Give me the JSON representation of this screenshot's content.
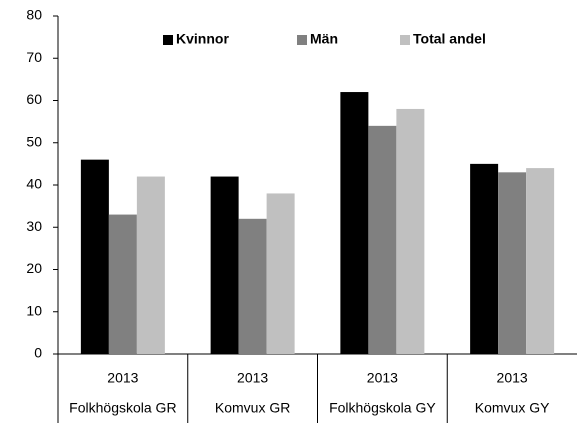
{
  "chart_data": {
    "type": "bar",
    "categories": [
      "Folkhögskola GR",
      "Komvux GR",
      "Folkhögskola GY",
      "Komvux GY"
    ],
    "sub_categories": [
      "2013",
      "2013",
      "2013",
      "2013"
    ],
    "series": [
      {
        "name": "Kvinnor",
        "color": "#000000",
        "values": [
          46,
          42,
          62,
          45
        ]
      },
      {
        "name": "Män",
        "color": "#808080",
        "values": [
          33,
          32,
          54,
          43
        ]
      },
      {
        "name": "Total andel",
        "color": "#c0c0c0",
        "values": [
          42,
          38,
          58,
          44
        ]
      }
    ],
    "ylim": [
      0,
      80
    ],
    "yticks": [
      0,
      10,
      20,
      30,
      40,
      50,
      60,
      70,
      80
    ],
    "grid": false,
    "legend": "top"
  }
}
